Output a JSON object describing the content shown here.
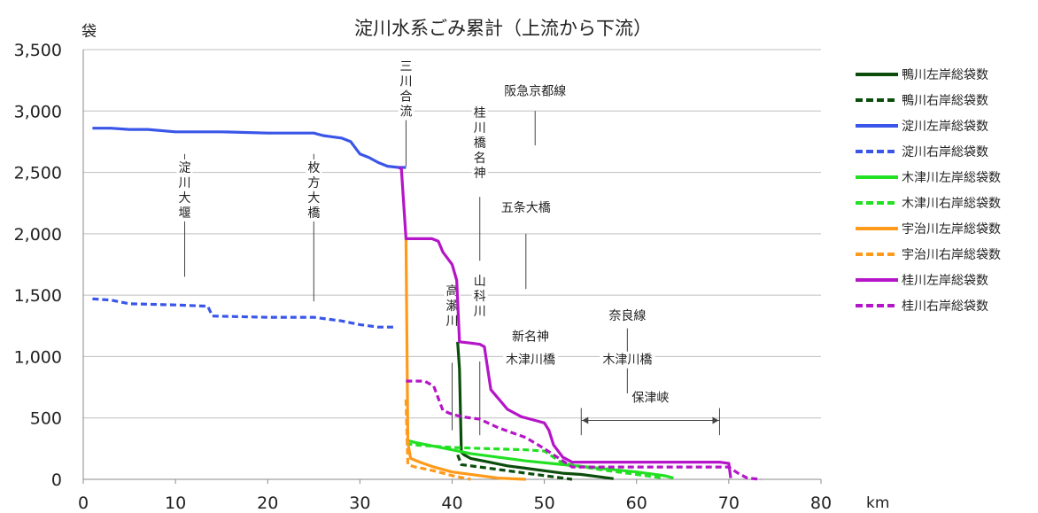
{
  "chart_data": {
    "type": "line",
    "title": "淀川水系ごみ累計（上流から下流）",
    "ylabel": "袋",
    "xlabel": "km",
    "xlim": [
      0,
      80
    ],
    "ylim": [
      0,
      3500
    ],
    "xticks": [
      0,
      10,
      20,
      30,
      40,
      50,
      60,
      70,
      80
    ],
    "yticks": [
      0,
      500,
      1000,
      1500,
      2000,
      2500,
      3000,
      3500
    ],
    "ytick_labels": [
      "0",
      "500",
      "1,000",
      "1,500",
      "2,000",
      "2,500",
      "3,000",
      "3,500"
    ],
    "grid": "horizontal",
    "legend_position": "right",
    "series": [
      {
        "name": "鴨川左岸総袋数",
        "color": "#0b4d0b",
        "dash": "solid",
        "x": [
          40.6,
          40.8,
          41.0,
          41.3,
          42,
          44,
          46,
          48,
          50,
          52,
          54,
          56,
          57.5
        ],
        "y": [
          1120,
          900,
          220,
          200,
          170,
          140,
          110,
          90,
          70,
          50,
          40,
          20,
          5
        ]
      },
      {
        "name": "鴨川右岸総袋数",
        "color": "#0b4d0b",
        "dash": "dashed",
        "x": [
          40.6,
          41,
          43,
          45,
          47,
          50,
          52,
          53
        ],
        "y": [
          200,
          120,
          100,
          80,
          60,
          30,
          10,
          0
        ]
      },
      {
        "name": "淀川左岸総袋数",
        "color": "#3a56e8",
        "dash": "solid",
        "x": [
          1,
          3,
          5,
          7,
          10,
          15,
          20,
          25,
          26,
          27,
          28,
          29,
          30,
          31,
          32,
          33,
          34.2,
          35
        ],
        "y": [
          2860,
          2860,
          2850,
          2850,
          2830,
          2830,
          2820,
          2820,
          2800,
          2790,
          2780,
          2750,
          2650,
          2620,
          2580,
          2550,
          2540,
          2540
        ]
      },
      {
        "name": "淀川右岸総袋数",
        "color": "#3a56e8",
        "dash": "dashed",
        "x": [
          1,
          3,
          5,
          10,
          13.5,
          14,
          20,
          25,
          28,
          30,
          32,
          34
        ],
        "y": [
          1470,
          1460,
          1430,
          1420,
          1410,
          1330,
          1320,
          1320,
          1290,
          1260,
          1240,
          1240
        ]
      },
      {
        "name": "木津川左岸総袋数",
        "color": "#22e022",
        "dash": "solid",
        "x": [
          35,
          36,
          38,
          40,
          42,
          45,
          48,
          52,
          56,
          60,
          63,
          64
        ],
        "y": [
          320,
          300,
          270,
          240,
          210,
          180,
          150,
          120,
          90,
          60,
          30,
          10
        ]
      },
      {
        "name": "木津川右岸総袋数",
        "color": "#22e022",
        "dash": "dashed",
        "x": [
          35,
          36,
          40,
          44,
          48,
          50,
          52,
          56,
          60,
          63
        ],
        "y": [
          290,
          280,
          260,
          250,
          240,
          230,
          130,
          80,
          40,
          10
        ]
      },
      {
        "name": "宇治川左岸総袋数",
        "color": "#ff9a1a",
        "dash": "solid",
        "x": [
          35,
          35.2,
          35.5,
          36.5,
          38,
          40,
          43,
          45,
          48
        ],
        "y": [
          1960,
          300,
          170,
          140,
          100,
          60,
          30,
          10,
          0
        ]
      },
      {
        "name": "宇治川右岸総袋数",
        "color": "#ff9a1a",
        "dash": "dashed",
        "x": [
          35,
          35.2,
          36,
          38,
          40,
          42
        ],
        "y": [
          650,
          120,
          100,
          70,
          30,
          0
        ]
      },
      {
        "name": "桂川左岸総袋数",
        "color": "#b515c8",
        "dash": "solid",
        "x": [
          34.2,
          34.5,
          35,
          37.8,
          38.5,
          39,
          40,
          40.5,
          40.8,
          42,
          43,
          43.5,
          44.2,
          46,
          47.5,
          49,
          50,
          50.5,
          51,
          52,
          53,
          55,
          60,
          65,
          69,
          70,
          70.2
        ],
        "y": [
          2540,
          2530,
          1960,
          1960,
          1940,
          1850,
          1750,
          1620,
          1120,
          1110,
          1100,
          1080,
          730,
          570,
          510,
          480,
          460,
          400,
          280,
          180,
          140,
          140,
          140,
          140,
          140,
          130,
          10
        ]
      },
      {
        "name": "桂川右岸総袋数",
        "color": "#b515c8",
        "dash": "dashed",
        "x": [
          35,
          37,
          38,
          39,
          40,
          41,
          43,
          45,
          48,
          50,
          52,
          53,
          60,
          66,
          70,
          71,
          72,
          73.5
        ],
        "y": [
          800,
          800,
          760,
          560,
          530,
          510,
          490,
          420,
          340,
          250,
          150,
          100,
          100,
          100,
          100,
          50,
          10,
          0
        ]
      }
    ],
    "annotations": [
      {
        "text": "淀川大堰",
        "x": 11,
        "vertical": true,
        "line_from_y": 1650,
        "line_to_y": 2650
      },
      {
        "text": "枚方大橋",
        "x": 25,
        "vertical": true,
        "line_from_y": 1450,
        "line_to_y": 2650
      },
      {
        "text": "三川合流",
        "x": 35,
        "vertical": true,
        "line_from_y": 2550,
        "line_to_y": 2950
      },
      {
        "text": "阪急京都線",
        "x": 49,
        "vertical": false,
        "line_from_y": 2720,
        "line_to_y": 3000
      },
      {
        "text": "桂川橋名神",
        "x": 43,
        "vertical": true,
        "line_from_y": 1780,
        "line_to_y": 2300
      },
      {
        "text": "五条大橋",
        "x": 48,
        "vertical": false,
        "line_from_y": 1550,
        "line_to_y": 2000
      },
      {
        "text": "山科川",
        "x": 43,
        "vertical": true,
        "line_from_y": 360,
        "line_to_y": 960
      },
      {
        "text": "高瀬川",
        "x": 40,
        "vertical": true,
        "line_from_y": 400,
        "line_to_y": 950
      },
      {
        "text": "新名神",
        "x": 48.5,
        "vertical": false
      },
      {
        "text": "木津川橋",
        "x": 48.5,
        "vertical": false
      },
      {
        "text": "奈良線",
        "x": 59,
        "vertical": false,
        "line_from_y": 700,
        "line_to_y": 1230
      },
      {
        "text": "木津川橋",
        "x": 59,
        "vertical": false
      },
      {
        "text": "保津峡",
        "x": 61.5,
        "vertical": false,
        "range_from_x": 54,
        "range_to_x": 69
      }
    ]
  }
}
